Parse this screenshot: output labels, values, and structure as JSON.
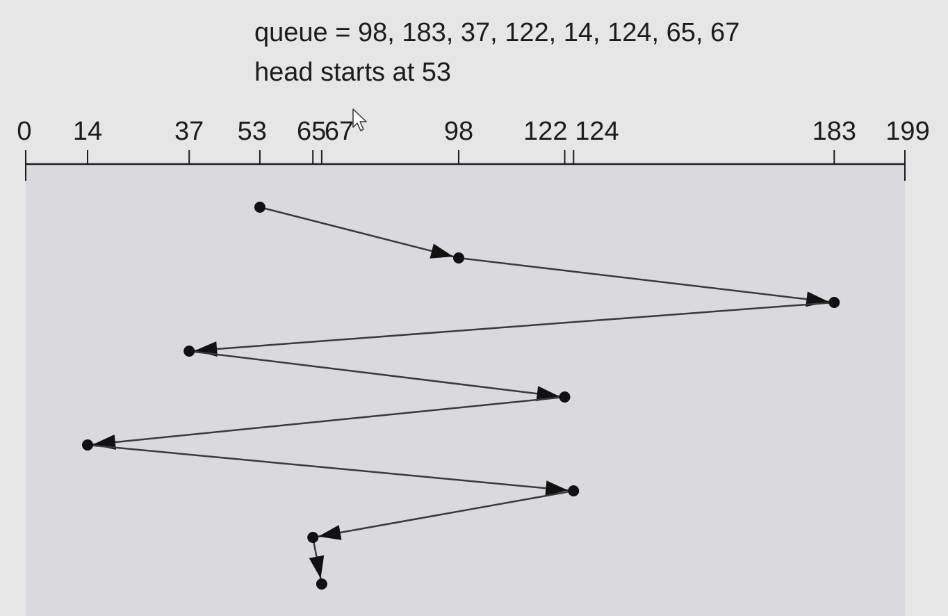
{
  "caption": {
    "queue_line": "queue = 98, 183, 37, 122, 14, 124, 65, 67",
    "head_line": "head starts at 53"
  },
  "axis": {
    "min": 0,
    "max": 199,
    "ticks": [
      {
        "value": 0,
        "label": "0"
      },
      {
        "value": 14,
        "label": "14"
      },
      {
        "value": 37,
        "label": "37"
      },
      {
        "value": 53,
        "label": "53"
      },
      {
        "value": 65,
        "label": "65"
      },
      {
        "value": 67,
        "label": "67"
      },
      {
        "value": 98,
        "label": "98"
      },
      {
        "value": 122,
        "label": "122"
      },
      {
        "value": 124,
        "label": "124"
      },
      {
        "value": 183,
        "label": "183"
      },
      {
        "value": 199,
        "label": "199"
      }
    ]
  },
  "path": [
    53,
    98,
    183,
    37,
    122,
    14,
    124,
    65,
    67
  ],
  "colors": {
    "background": "#e6e6e6",
    "plot_area": "#d9d9de",
    "ink": "#1c1c1c",
    "line": "#3a3a3a"
  },
  "icons": {
    "cursor": "mouse-pointer-icon"
  }
}
